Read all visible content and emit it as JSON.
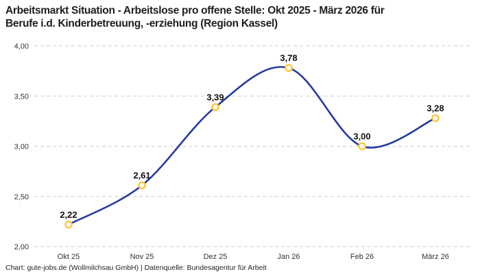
{
  "header": {
    "title_line1": "Arbeitsmarkt Situation - Arbeitslose pro offene Stelle: Okt 2025 - März 2026 für",
    "title_line2": "Berufe i.d. Kinderbetreuung, -erziehung (Region Kassel)"
  },
  "footer": {
    "text": "Chart: gute-jobs.de (Wollmilchsau GmbH) | Datenquelle: Bundesagentur für Arbeit"
  },
  "chart_data": {
    "type": "line",
    "title": "Arbeitsmarkt Situation - Arbeitslose pro offene Stelle: Okt 2025 - März 2026 für Berufe i.d. Kinderbetreuung, -erziehung (Region Kassel)",
    "categories": [
      "Okt 25",
      "Nov 25",
      "Dez 25",
      "Jan 26",
      "Feb 26",
      "März 26"
    ],
    "values": [
      2.22,
      2.61,
      3.39,
      3.78,
      3.0,
      3.28
    ],
    "value_labels": [
      "2,22",
      "2,61",
      "3,39",
      "3,78",
      "3,00",
      "3,28"
    ],
    "ylim": [
      2.0,
      4.0
    ],
    "yticks": [
      2.0,
      2.5,
      3.0,
      3.5,
      4.0
    ],
    "ytick_labels": [
      "2,00",
      "2,50",
      "3,00",
      "3,50",
      "4,00"
    ],
    "xlabel": "",
    "ylabel": "",
    "grid": "horizontal-dashed",
    "legend": "none",
    "line_style": "smooth-spline",
    "colors": {
      "line": "#24399f",
      "marker_ring": "#ffc437",
      "marker_fill": "#ffffff",
      "gridline": "#cbcbcb",
      "tick_text": "#333333",
      "point_label_text": "#111111"
    }
  }
}
